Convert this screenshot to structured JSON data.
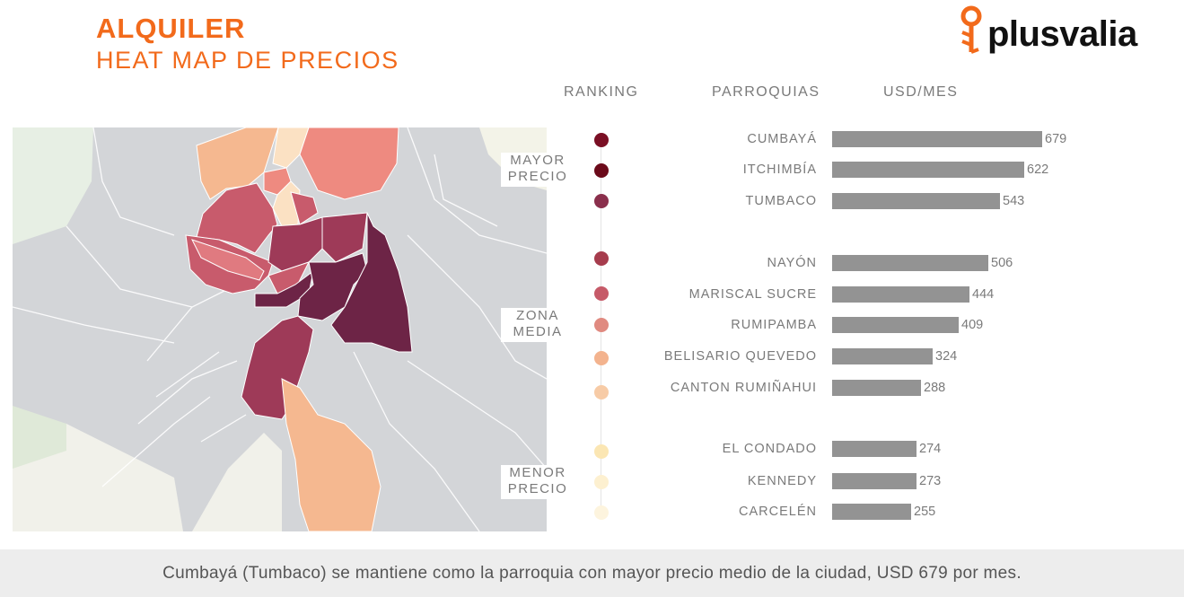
{
  "header": {
    "title": "ALQUILER",
    "subtitle": "HEAT MAP DE PRECIOS",
    "logo_text": "plusvalia",
    "brand_color": "#f26a1b"
  },
  "columns": {
    "ranking": "RANKING",
    "parroquias": "PARROQUIAS",
    "usd_mes": "USD/MES"
  },
  "zones": {
    "mayor": [
      "MAYOR",
      "PRECIO"
    ],
    "media": [
      "ZONA",
      "MEDIA"
    ],
    "menor": [
      "MENOR",
      "PRECIO"
    ]
  },
  "chart_data": {
    "type": "bar",
    "categories": [
      "CUMBAYÁ",
      "ITCHIMBÍA",
      "TUMBACO",
      "NAYÓN",
      "MARISCAL SUCRE",
      "RUMIPAMBA",
      "BELISARIO QUEVEDO",
      "CANTON RUMIÑAHUI",
      "EL CONDADO",
      "KENNEDY",
      "CARCELÉN"
    ],
    "values": [
      679,
      622,
      543,
      506,
      444,
      409,
      324,
      288,
      274,
      273,
      255
    ],
    "rank_colors": [
      "#7a0f24",
      "#6b0a1a",
      "#8a2f4c",
      "#a63c4d",
      "#c65a68",
      "#e08a80",
      "#f3b38e",
      "#f7cba6",
      "#fbe6b3",
      "#fdf0d0",
      "#fdf4de"
    ],
    "bar_color": "#939393",
    "xlim": [
      0,
      679
    ]
  },
  "map": {
    "background": "#d3d5d8",
    "accent_colors": [
      "#6d2446",
      "#9e3a58",
      "#c85b6c",
      "#ee8a80",
      "#f5b890",
      "#fbe1c3"
    ]
  },
  "footer": {
    "text": "Cumbayá (Tumbaco) se mantiene como la parroquia con mayor precio medio de la ciudad, USD 679 por mes."
  }
}
